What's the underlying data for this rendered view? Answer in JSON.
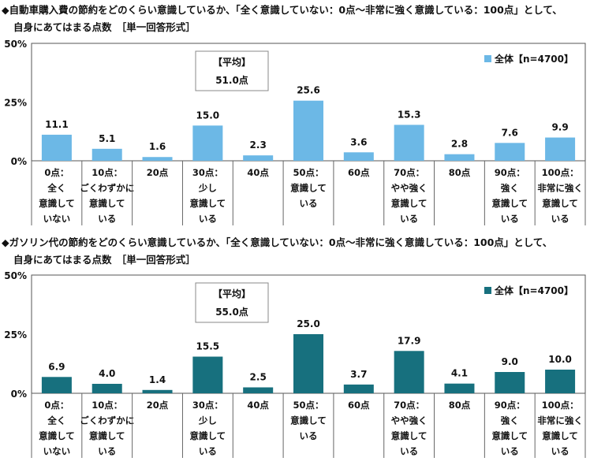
{
  "chart_data": [
    {
      "type": "bar",
      "title_line1": "◆自動車購入費の節約をどのくらい意識しているか、「全く意識していない：0点～非常に強く意識している：100点」として、",
      "title_line2": "自身にあてはまる点数　［単一回答形式］",
      "categories": [
        [
          "0点：",
          "全く",
          "意識して",
          "いない"
        ],
        [
          "10点：",
          "ごくわずかに",
          "意識して",
          "いる"
        ],
        [
          "20点"
        ],
        [
          "30点：",
          "少し",
          "意識して",
          "いる"
        ],
        [
          "40点"
        ],
        [
          "50点：",
          "意識して",
          "いる"
        ],
        [
          "60点"
        ],
        [
          "70点：",
          "やや強く",
          "意識して",
          "いる"
        ],
        [
          "80点"
        ],
        [
          "90点：",
          "強く",
          "意識して",
          "いる"
        ],
        [
          "100点：",
          "非常に強く",
          "意識して",
          "いる"
        ]
      ],
      "series": [
        {
          "name": "全体【n=4700】",
          "values": [
            11.1,
            5.1,
            1.6,
            15.0,
            2.3,
            25.6,
            3.6,
            15.3,
            2.8,
            7.6,
            9.9
          ],
          "color": "#6cb8e6"
        }
      ],
      "yticks": [
        "50%",
        "25%",
        "0%"
      ],
      "ylim": [
        0,
        50
      ],
      "average_label": "【平均】",
      "average_value": "51.0点",
      "legend_position": "top-right"
    },
    {
      "type": "bar",
      "title_line1": "◆ガソリン代の節約をどのくらい意識しているか、「全く意識していない：0点～非常に強く意識している：100点」として、",
      "title_line2": "自身にあてはまる点数　［単一回答形式］",
      "categories": [
        [
          "0点：",
          "全く",
          "意識して",
          "いない"
        ],
        [
          "10点：",
          "ごくわずかに",
          "意識して",
          "いる"
        ],
        [
          "20点"
        ],
        [
          "30点：",
          "少し",
          "意識して",
          "いる"
        ],
        [
          "40点"
        ],
        [
          "50点：",
          "意識して",
          "いる"
        ],
        [
          "60点"
        ],
        [
          "70点：",
          "やや強く",
          "意識して",
          "いる"
        ],
        [
          "80点"
        ],
        [
          "90点：",
          "強く",
          "意識して",
          "いる"
        ],
        [
          "100点：",
          "非常に強く",
          "意識して",
          "いる"
        ]
      ],
      "series": [
        {
          "name": "全体【n=4700】",
          "values": [
            6.9,
            4.0,
            1.4,
            15.5,
            2.5,
            25.0,
            3.7,
            17.9,
            4.1,
            9.0,
            10.0
          ],
          "color": "#17707e"
        }
      ],
      "yticks": [
        "50%",
        "25%",
        "0%"
      ],
      "ylim": [
        0,
        50
      ],
      "average_label": "【平均】",
      "average_value": "55.0点",
      "legend_position": "top-right"
    }
  ]
}
